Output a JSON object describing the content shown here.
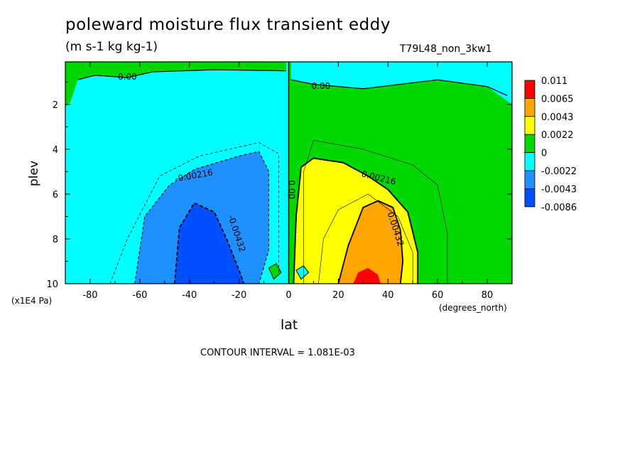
{
  "chart_data": {
    "type": "heatmap",
    "title": "poleward moisture flux transient eddy",
    "units": "(m s-1 kg kg-1)",
    "run_label": "T79L48_non_3kw1",
    "xlabel": "lat",
    "x_unit": "(degrees_north)",
    "ylabel": "plev",
    "y_unit": "(x1E4 Pa)",
    "xlim": [
      -90,
      90
    ],
    "ylim": [
      10,
      0.1
    ],
    "y_inverted": true,
    "x_ticks": [
      -80,
      -60,
      -40,
      -20,
      0,
      20,
      40,
      60,
      80
    ],
    "y_ticks": [
      2,
      4,
      6,
      8,
      10
    ],
    "contour_interval_text": "CONTOUR INTERVAL = 1.081E-03",
    "contour_labels": [
      {
        "text": "0.00",
        "lat": -65,
        "plev": 0.9
      },
      {
        "text": "0.00",
        "lat": 13,
        "plev": 1.3
      },
      {
        "text": "-0.00216",
        "lat": -38,
        "plev": 5.3
      },
      {
        "text": "0.00216",
        "lat": 36,
        "plev": 5.4
      },
      {
        "text": "-0.00432",
        "lat": -22,
        "plev": 7.8
      },
      {
        "text": "0.00432",
        "lat": 42,
        "plev": 7.6
      },
      {
        "text": "0.00",
        "lat": 0,
        "plev": 5.8
      }
    ],
    "colorbar": {
      "labels": [
        "0.011",
        "0.0065",
        "0.0043",
        "0.0022",
        "0",
        "-0.0022",
        "-0.0043",
        "-0.0086"
      ],
      "colors": [
        "#ff0000",
        "#ffa500",
        "#ffff00",
        "#00d700",
        "#00ffff",
        "#1e90ff",
        "#0050ff"
      ]
    },
    "colors": {
      "neg_small": "#00ffff",
      "neg_mid": "#1e90ff",
      "neg_large": "#0050ff",
      "pos_small": "#00d700",
      "pos_mid": "#ffff00",
      "pos_large": "#ffa500",
      "pos_max": "#ff0000"
    }
  }
}
